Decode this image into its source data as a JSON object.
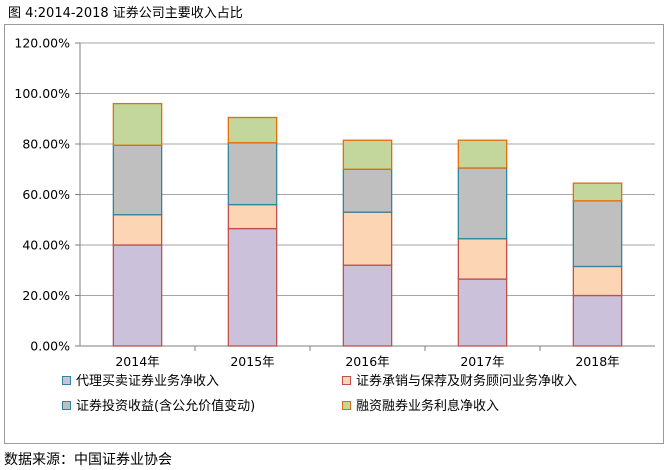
{
  "figure_title": "图 4:2014-2018 证券公司主要收入占比",
  "source": "数据来源：中国证券业协会",
  "chart_data": {
    "type": "bar",
    "stacked": true,
    "categories": [
      "2014年",
      "2015年",
      "2016年",
      "2017年",
      "2018年"
    ],
    "series": [
      {
        "name": "代理买卖证券业务净收入",
        "values": [
          40.0,
          46.5,
          32.0,
          26.5,
          20.0
        ],
        "fill": "#ccc1da",
        "stroke": "#c0504d"
      },
      {
        "name": "证券承销与保荐及财务顾问业务净收入",
        "values": [
          12.0,
          9.5,
          21.0,
          16.0,
          11.5
        ],
        "fill": "#fcd5b5",
        "stroke": "#c0504d"
      },
      {
        "name": "证券投资收益(含公允价值变动)",
        "values": [
          27.5,
          24.5,
          17.0,
          28.0,
          26.0
        ],
        "fill": "#bfbfbf",
        "stroke": "#31859c"
      },
      {
        "name": "融资融券业务利息净收入",
        "values": [
          16.5,
          10.0,
          11.5,
          11.0,
          7.0
        ],
        "fill": "#c3d69b",
        "stroke": "#e46c0a"
      }
    ],
    "yticks": [
      "0.00%",
      "20.00%",
      "40.00%",
      "60.00%",
      "80.00%",
      "100.00%",
      "120.00%"
    ],
    "ylim": [
      0,
      120
    ],
    "grid": true,
    "legend_position": "bottom"
  }
}
